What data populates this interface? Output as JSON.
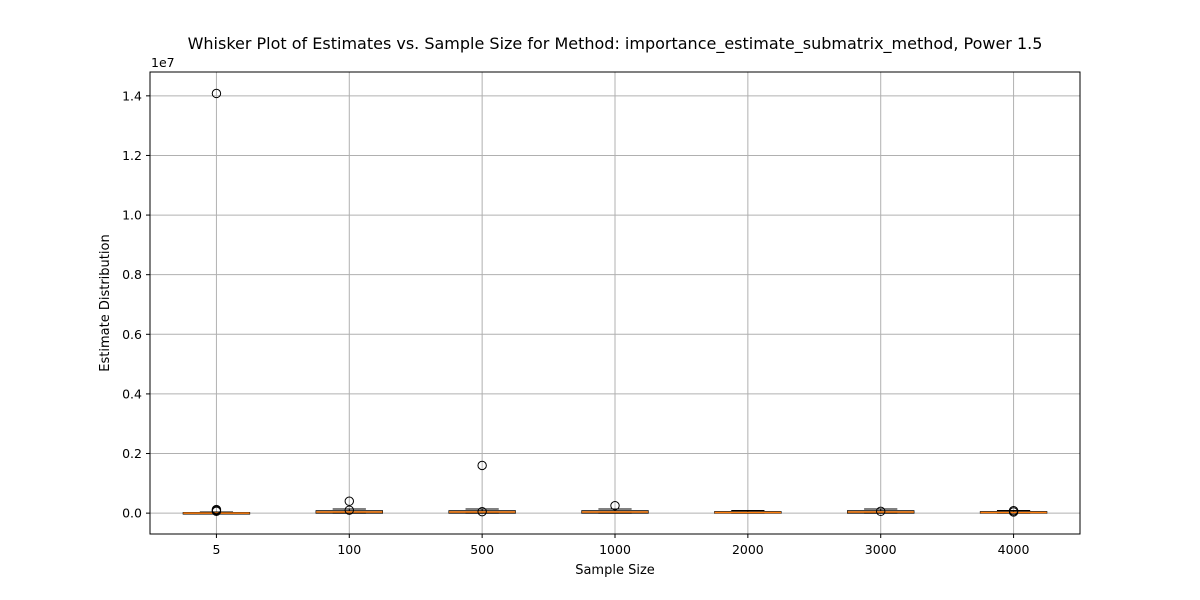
{
  "chart_data": {
    "type": "box",
    "title": "Whisker Plot of Estimates vs. Sample Size for Method: importance_estimate_submatrix_method, Power 1.5",
    "xlabel": "Sample Size",
    "ylabel": "Estimate Distribution",
    "y_multiplier_label": "1e7",
    "ylim": [
      -0.07,
      1.48
    ],
    "yticks": [
      0.0,
      0.2,
      0.4,
      0.6,
      0.8,
      1.0,
      1.2,
      1.4
    ],
    "ytick_labels": [
      "0.0",
      "0.2",
      "0.4",
      "0.6",
      "0.8",
      "1.0",
      "1.2",
      "1.4"
    ],
    "grid": true,
    "box_color": "#ff7f0e",
    "median_color": "#ff7f0e",
    "categories": [
      "5",
      "100",
      "500",
      "1000",
      "2000",
      "3000",
      "4000"
    ],
    "boxes": [
      {
        "q1": 0.0,
        "median": 0.0,
        "q3": 0.002,
        "whisker_low": 0.0,
        "whisker_high": 0.004,
        "outliers": [
          1.408,
          0.012,
          0.009,
          0.006
        ]
      },
      {
        "q1": 0.0,
        "median": 0.004,
        "q3": 0.008,
        "whisker_low": 0.0,
        "whisker_high": 0.014,
        "outliers": [
          0.04,
          0.01
        ]
      },
      {
        "q1": 0.0,
        "median": 0.004,
        "q3": 0.008,
        "whisker_low": 0.0,
        "whisker_high": 0.014,
        "outliers": [
          0.16,
          0.005
        ]
      },
      {
        "q1": 0.0,
        "median": 0.004,
        "q3": 0.008,
        "whisker_low": 0.0,
        "whisker_high": 0.014,
        "outliers": [
          0.025
        ]
      },
      {
        "q1": 0.0,
        "median": 0.002,
        "q3": 0.005,
        "whisker_low": 0.0,
        "whisker_high": 0.009,
        "outliers": []
      },
      {
        "q1": 0.0,
        "median": 0.004,
        "q3": 0.008,
        "whisker_low": 0.0,
        "whisker_high": 0.014,
        "outliers": [
          0.006
        ]
      },
      {
        "q1": 0.0,
        "median": 0.002,
        "q3": 0.005,
        "whisker_low": 0.0,
        "whisker_high": 0.009,
        "outliers": [
          0.008,
          0.004
        ]
      }
    ]
  }
}
